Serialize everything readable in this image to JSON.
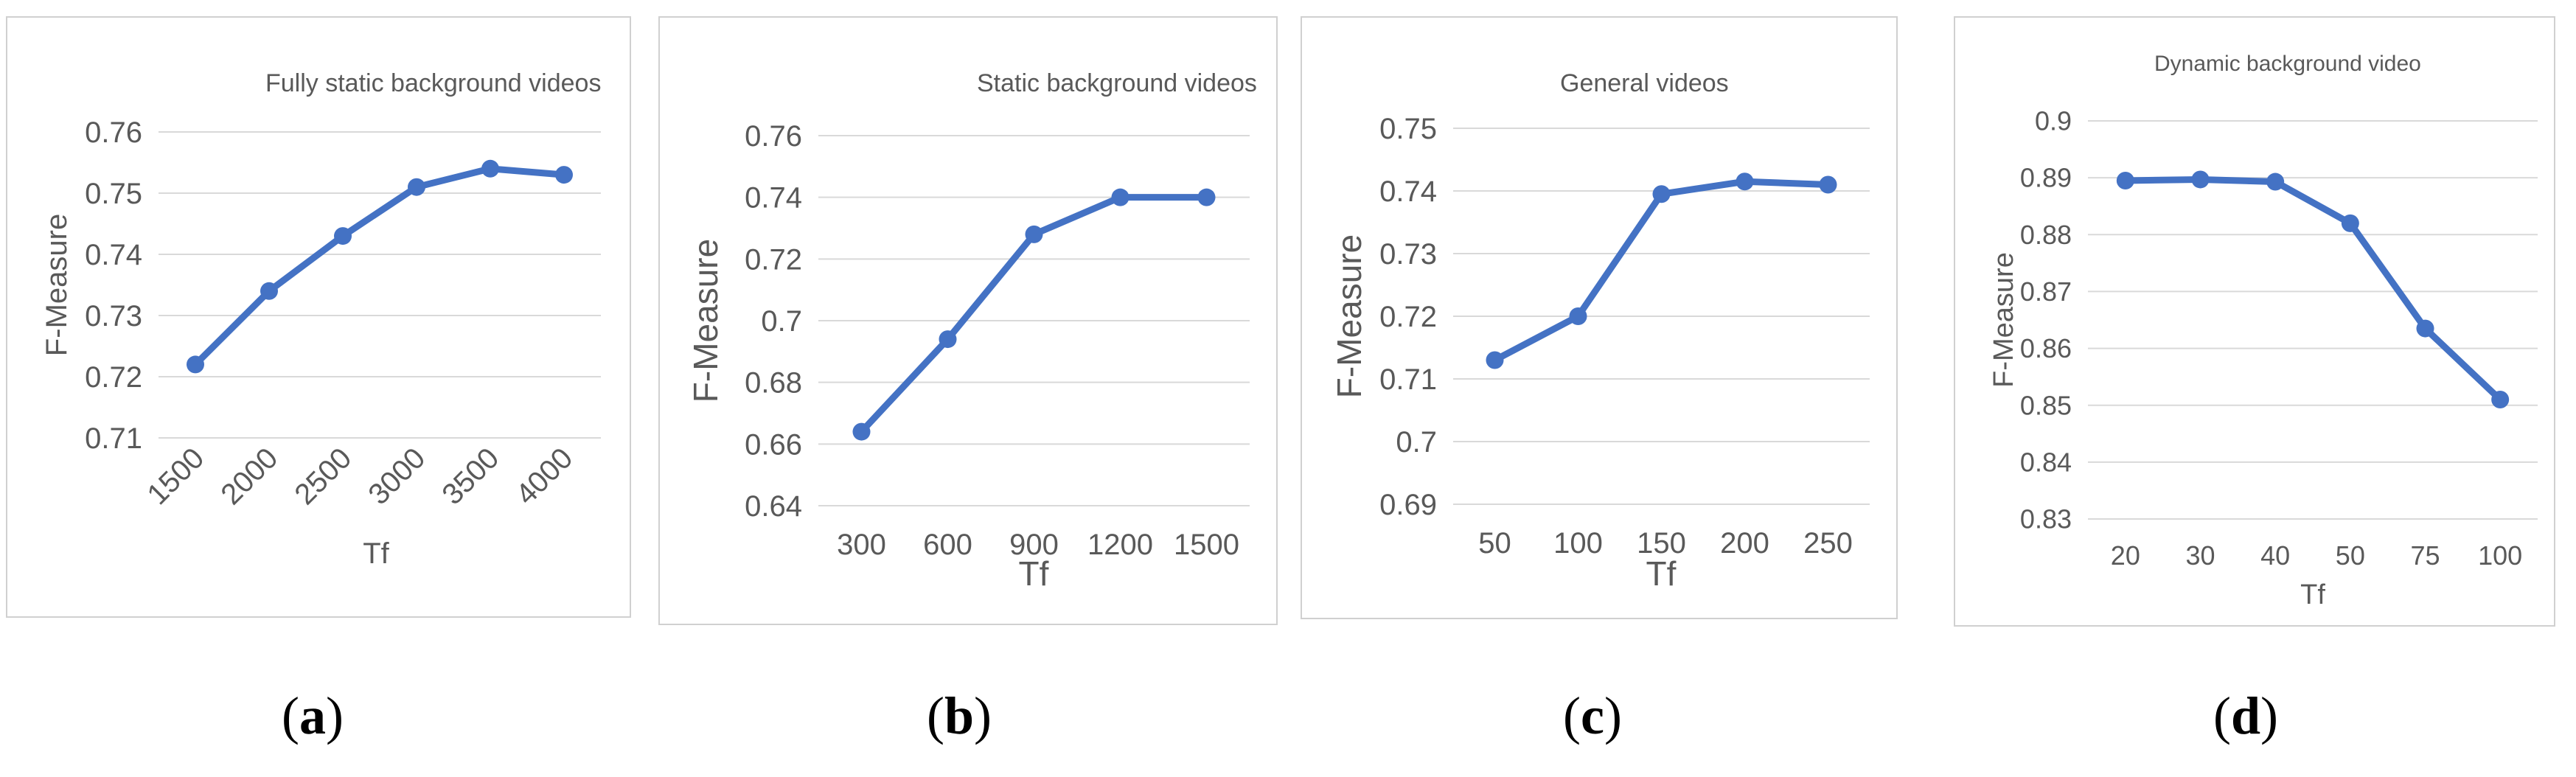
{
  "accent_color": "#4472c4",
  "grid_color": "#d9d9d9",
  "text_color": "#595959",
  "chart_data": [
    {
      "type": "line",
      "title": "Fully static background videos",
      "xlabel": "Tf",
      "ylabel": "F-Measure",
      "categories": [
        "1500",
        "2000",
        "2500",
        "3000",
        "3500",
        "4000"
      ],
      "values": [
        0.722,
        0.734,
        0.743,
        0.751,
        0.754,
        0.753
      ],
      "ylim": [
        0.71,
        0.76
      ],
      "yticks": [
        "0.71",
        "0.72",
        "0.73",
        "0.74",
        "0.75",
        "0.76"
      ],
      "grid": true,
      "rotated_x_labels": true,
      "caption_letter": "a"
    },
    {
      "type": "line",
      "title": "Static background videos",
      "xlabel": "Tf",
      "ylabel": "F-Measure",
      "categories": [
        "300",
        "600",
        "900",
        "1200",
        "1500"
      ],
      "values": [
        0.664,
        0.694,
        0.728,
        0.74,
        0.74
      ],
      "ylim": [
        0.64,
        0.76
      ],
      "yticks": [
        "0.64",
        "0.66",
        "0.68",
        "0.7",
        "0.72",
        "0.74",
        "0.76"
      ],
      "grid": true,
      "rotated_x_labels": false,
      "caption_letter": "b"
    },
    {
      "type": "line",
      "title": "General videos",
      "xlabel": "Tf",
      "ylabel": "F-Measure",
      "categories": [
        "50",
        "100",
        "150",
        "200",
        "250"
      ],
      "values": [
        0.713,
        0.72,
        0.7395,
        0.7415,
        0.741
      ],
      "ylim": [
        0.69,
        0.75
      ],
      "yticks": [
        "0.69",
        "0.7",
        "0.71",
        "0.72",
        "0.73",
        "0.74",
        "0.75"
      ],
      "grid": true,
      "rotated_x_labels": false,
      "caption_letter": "c"
    },
    {
      "type": "line",
      "title": "Dynamic background video",
      "xlabel": "Tf",
      "ylabel": "F-Measure",
      "categories": [
        "20",
        "30",
        "40",
        "50",
        "75",
        "100"
      ],
      "values": [
        0.8895,
        0.8897,
        0.8893,
        0.882,
        0.8635,
        0.851
      ],
      "ylim": [
        0.83,
        0.9
      ],
      "yticks": [
        "0.83",
        "0.84",
        "0.85",
        "0.86",
        "0.87",
        "0.88",
        "0.89",
        "0.9"
      ],
      "grid": true,
      "rotated_x_labels": false,
      "caption_letter": "d"
    }
  ]
}
